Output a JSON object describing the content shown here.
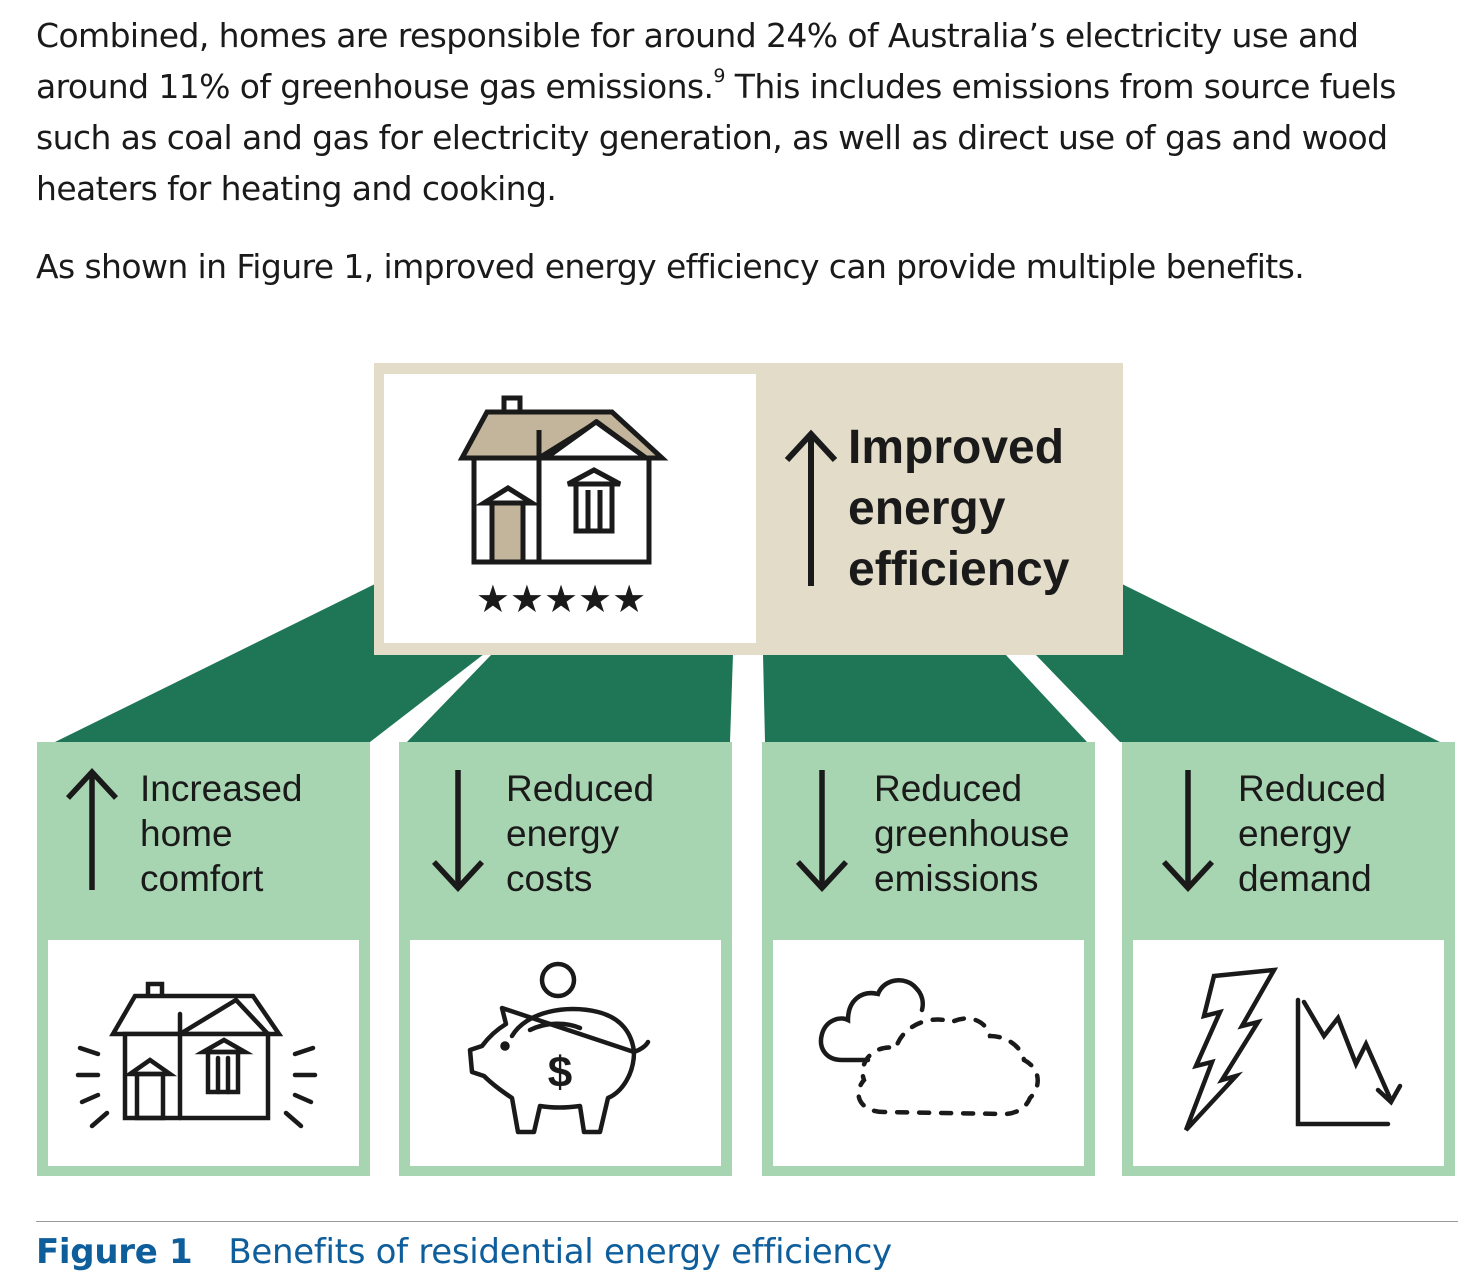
{
  "intro": {
    "paragraph1_before": "Combined, homes are responsible for around 24% of Australia’s electricity use and around 11% of greenhouse gas emissions.",
    "footnote": "9",
    "paragraph1_after": " This includes emissions from source fuels such as coal and gas for electricity generation, as well as direct use of gas and wood heaters for heating and cooking.",
    "paragraph2": "As shown in Figure 1, improved energy efficiency can provide multiple benefits."
  },
  "diagram": {
    "top": {
      "lines": [
        "Improved",
        "energy",
        "efficiency"
      ],
      "arrow": "up",
      "icon": "house-five-star-icon",
      "stars": "★★★★★"
    },
    "benefits": [
      {
        "lines": [
          "Increased",
          "home",
          "comfort"
        ],
        "arrow": "up",
        "icon": "comfortable-house-icon"
      },
      {
        "lines": [
          "Reduced",
          "energy",
          "costs"
        ],
        "arrow": "down",
        "icon": "piggy-bank-icon"
      },
      {
        "lines": [
          "Reduced",
          "greenhouse",
          "emissions"
        ],
        "arrow": "down",
        "icon": "cloud-dotted-icon"
      },
      {
        "lines": [
          "Reduced",
          "energy",
          "demand"
        ],
        "arrow": "down",
        "icon": "lightning-declining-chart-icon"
      }
    ],
    "dollar_sign": "$",
    "colors": {
      "dark_green": "#1e7656",
      "light_green": "#a8d5b1",
      "beige": "#e2dcc9",
      "roof_tan": "#c2b59c"
    }
  },
  "caption": {
    "figure_label": "Figure 1",
    "text": "Benefits of residential energy efficiency"
  }
}
